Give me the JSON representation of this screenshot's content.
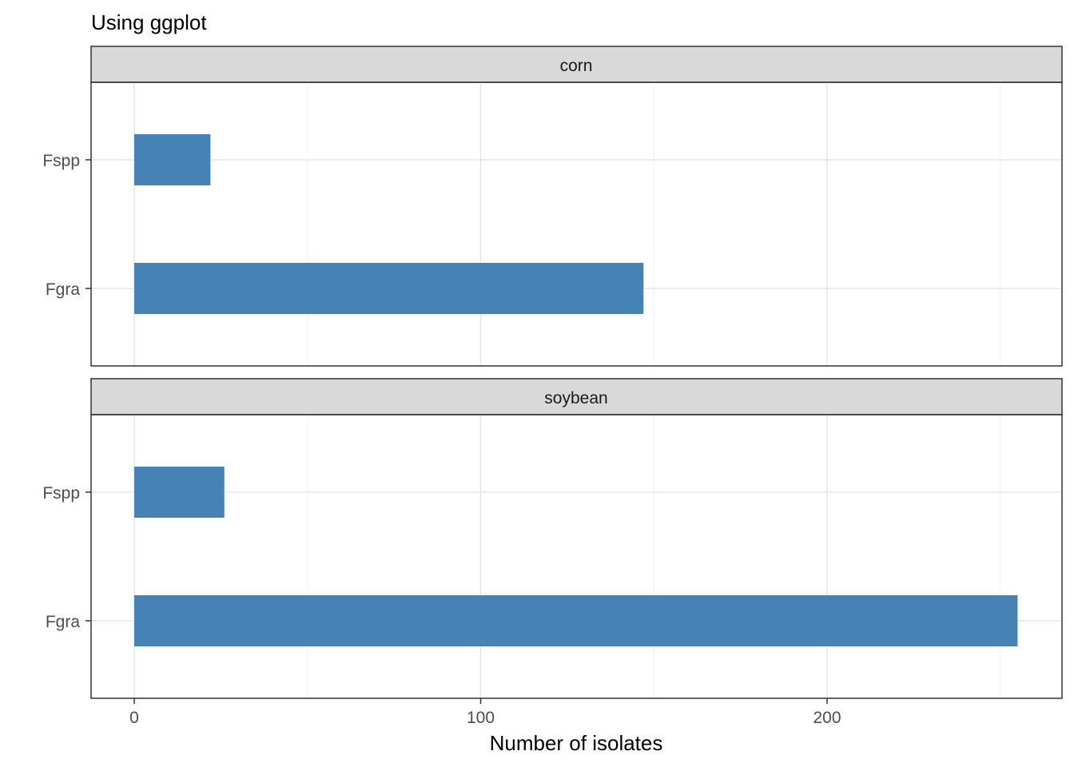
{
  "chart_data": {
    "type": "bar",
    "orientation": "horizontal",
    "title": "Using ggplot",
    "xlabel": "Number of isolates",
    "ylabel": "",
    "xlim": [
      -12.5,
      267
    ],
    "x_ticks": [
      0,
      100,
      200
    ],
    "x_minor_ticks": [
      50,
      150,
      250
    ],
    "grid": true,
    "bar_color": "#4682B4",
    "categories": [
      "Fspp",
      "Fgra"
    ],
    "facets": [
      {
        "label": "corn",
        "values": [
          22,
          147
        ]
      },
      {
        "label": "soybean",
        "values": [
          26,
          255
        ]
      }
    ]
  }
}
